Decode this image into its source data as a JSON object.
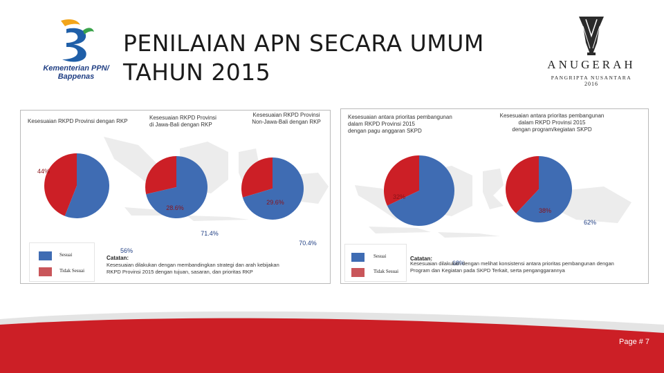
{
  "header": {
    "title_line1": "PENILAIAN APN SECARA UMUM",
    "title_line2": "TAHUN 2015"
  },
  "logo_left": {
    "line1": "Kementerian PPN/",
    "line2": "Bappenas"
  },
  "logo_right": {
    "brand": "ANUGERAH",
    "subtitle": "PANGRIPTA NUSANTARA",
    "year": "2016"
  },
  "colors": {
    "sesuai": "#3f6cb3",
    "tidak_sesuai": "#cc1f26",
    "footer": "#cc1f26"
  },
  "panel_left": {
    "legend": {
      "sesuai": "Sesuai",
      "tidak_sesuai": "Tidak Sesuai"
    },
    "note_heading": "Catatan:",
    "note_line1": "Kesesuaian dilakukan dengan membandingkan strategi dan arah kebijakan",
    "note_line2": "RKPD Provinsi 2015 dengan tujuan, sasaran, dan prioritas RKP"
  },
  "panel_right": {
    "legend": {
      "sesuai": "Sesuai",
      "tidak_sesuai": "Tidak Sesuai"
    },
    "note_heading": "Catatan:",
    "note_line1": "Kesesuaian dilakukan dengan melihat konsistensi antara prioritas pembangunan dengan",
    "note_line2": "Program dan Kegiatan pada SKPD Terkait, serta penganggarannya"
  },
  "chart_data": [
    {
      "type": "pie",
      "title_lines": [
        "Kesesuaian RKPD Provinsi dengan RKP"
      ],
      "labels": [
        "Sesuai",
        "Tidak Sesuai"
      ],
      "values": [
        56,
        44
      ],
      "value_labels": [
        "56%",
        "44%"
      ],
      "colors": [
        "#3f6cb3",
        "#cc1f26"
      ]
    },
    {
      "type": "pie",
      "title_lines": [
        "Kesesuaian RKPD Provinsi",
        "di Jawa-Bali dengan RKP"
      ],
      "labels": [
        "Sesuai",
        "Tidak Sesuai"
      ],
      "values": [
        71.4,
        28.6
      ],
      "value_labels": [
        "71.4%",
        "28.6%"
      ],
      "colors": [
        "#3f6cb3",
        "#cc1f26"
      ]
    },
    {
      "type": "pie",
      "title_lines": [
        "Kesesuaian RKPD Provinsi",
        "Non-Jawa-Bali dengan RKP"
      ],
      "labels": [
        "Sesuai",
        "Tidak Sesuai"
      ],
      "values": [
        70.4,
        29.6
      ],
      "value_labels": [
        "70.4%",
        "29.6%"
      ],
      "colors": [
        "#3f6cb3",
        "#cc1f26"
      ]
    },
    {
      "type": "pie",
      "title_lines": [
        "Kesesuaian antara prioritas pembangunan",
        "dalam RKPD Provinsi 2015",
        "dengan pagu anggaran SKPD"
      ],
      "labels": [
        "Sesuai",
        "Tidak Sesuai"
      ],
      "values": [
        68,
        32
      ],
      "value_labels": [
        "68%",
        "32%"
      ],
      "colors": [
        "#3f6cb3",
        "#cc1f26"
      ]
    },
    {
      "type": "pie",
      "title_lines": [
        "Kesesuaian antara prioritas pembangunan",
        "dalam RKPD Provinsi 2015",
        "dengan program/kegiatan SKPD"
      ],
      "labels": [
        "Sesuai",
        "Tidak Sesuai"
      ],
      "values": [
        62,
        38
      ],
      "value_labels": [
        "62%",
        "38%"
      ],
      "colors": [
        "#3f6cb3",
        "#cc1f26"
      ]
    }
  ],
  "footer": {
    "page_label": "Page # 7"
  }
}
